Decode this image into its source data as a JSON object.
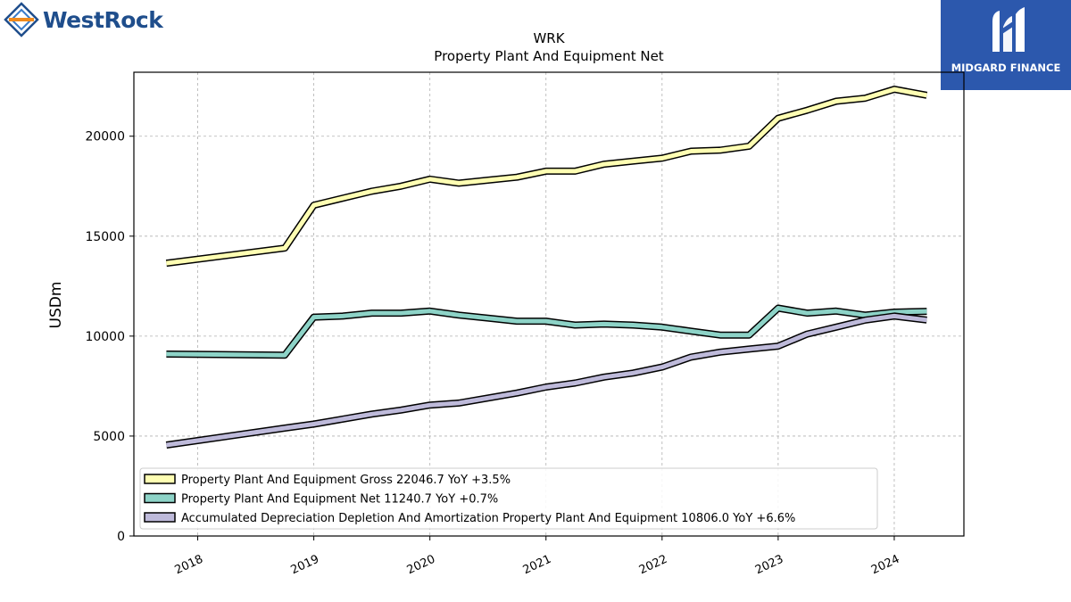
{
  "branding": {
    "left_logo_text": "WestRock",
    "right_logo_text": "MIDGARD FINANCE"
  },
  "chart_data": {
    "type": "line",
    "title": "WRK",
    "subtitle": "Property Plant And Equipment Net",
    "xlabel": "",
    "ylabel": "USDm",
    "ylim": [
      0,
      23200
    ],
    "xlim": [
      2017.45,
      2024.6
    ],
    "yticks": [
      0,
      5000,
      10000,
      15000,
      20000
    ],
    "xticks": [
      "2018",
      "2019",
      "2020",
      "2021",
      "2022",
      "2023",
      "2024"
    ],
    "grid": true,
    "legend_position": "lower-left",
    "series": [
      {
        "name": "Property Plant And Equipment Gross  22046.7 YoY +3.5%",
        "color": "#ffffb3",
        "points": [
          [
            2017.73,
            13650
          ],
          [
            2018.75,
            14400
          ],
          [
            2019.0,
            16550
          ],
          [
            2019.25,
            16900
          ],
          [
            2019.5,
            17250
          ],
          [
            2019.75,
            17500
          ],
          [
            2020.0,
            17850
          ],
          [
            2020.25,
            17650
          ],
          [
            2020.5,
            17800
          ],
          [
            2020.75,
            17950
          ],
          [
            2021.0,
            18250
          ],
          [
            2021.25,
            18250
          ],
          [
            2021.5,
            18600
          ],
          [
            2021.75,
            18750
          ],
          [
            2022.0,
            18900
          ],
          [
            2022.25,
            19250
          ],
          [
            2022.5,
            19300
          ],
          [
            2022.75,
            19500
          ],
          [
            2023.0,
            20900
          ],
          [
            2023.25,
            21300
          ],
          [
            2023.5,
            21750
          ],
          [
            2023.75,
            21900
          ],
          [
            2024.0,
            22350
          ],
          [
            2024.28,
            22050
          ]
        ]
      },
      {
        "name": "Property Plant And Equipment Net  11240.7 YoY +0.7%",
        "color": "#8dd3c7",
        "points": [
          [
            2017.73,
            9100
          ],
          [
            2018.75,
            9050
          ],
          [
            2019.0,
            10950
          ],
          [
            2019.25,
            11000
          ],
          [
            2019.5,
            11150
          ],
          [
            2019.75,
            11150
          ],
          [
            2020.0,
            11250
          ],
          [
            2020.25,
            11050
          ],
          [
            2020.5,
            10900
          ],
          [
            2020.75,
            10750
          ],
          [
            2021.0,
            10750
          ],
          [
            2021.25,
            10550
          ],
          [
            2021.5,
            10600
          ],
          [
            2021.75,
            10550
          ],
          [
            2022.0,
            10450
          ],
          [
            2022.25,
            10250
          ],
          [
            2022.5,
            10050
          ],
          [
            2022.75,
            10050
          ],
          [
            2023.0,
            11400
          ],
          [
            2023.25,
            11150
          ],
          [
            2023.5,
            11250
          ],
          [
            2023.75,
            11050
          ],
          [
            2024.0,
            11200
          ],
          [
            2024.28,
            11240
          ]
        ]
      },
      {
        "name": "Accumulated Depreciation Depletion And Amortization Property Plant And Equipment  10806.0 YoY +6.6%",
        "color": "#bebada",
        "points": [
          [
            2017.73,
            4550
          ],
          [
            2018.75,
            5400
          ],
          [
            2019.0,
            5600
          ],
          [
            2019.25,
            5850
          ],
          [
            2019.5,
            6100
          ],
          [
            2019.75,
            6300
          ],
          [
            2020.0,
            6550
          ],
          [
            2020.25,
            6650
          ],
          [
            2020.5,
            6900
          ],
          [
            2020.75,
            7150
          ],
          [
            2021.0,
            7450
          ],
          [
            2021.25,
            7650
          ],
          [
            2021.5,
            7950
          ],
          [
            2021.75,
            8150
          ],
          [
            2022.0,
            8450
          ],
          [
            2022.25,
            8950
          ],
          [
            2022.5,
            9200
          ],
          [
            2022.75,
            9350
          ],
          [
            2023.0,
            9500
          ],
          [
            2023.25,
            10100
          ],
          [
            2023.5,
            10450
          ],
          [
            2023.75,
            10800
          ],
          [
            2024.0,
            11000
          ],
          [
            2024.28,
            10806
          ]
        ]
      }
    ]
  }
}
